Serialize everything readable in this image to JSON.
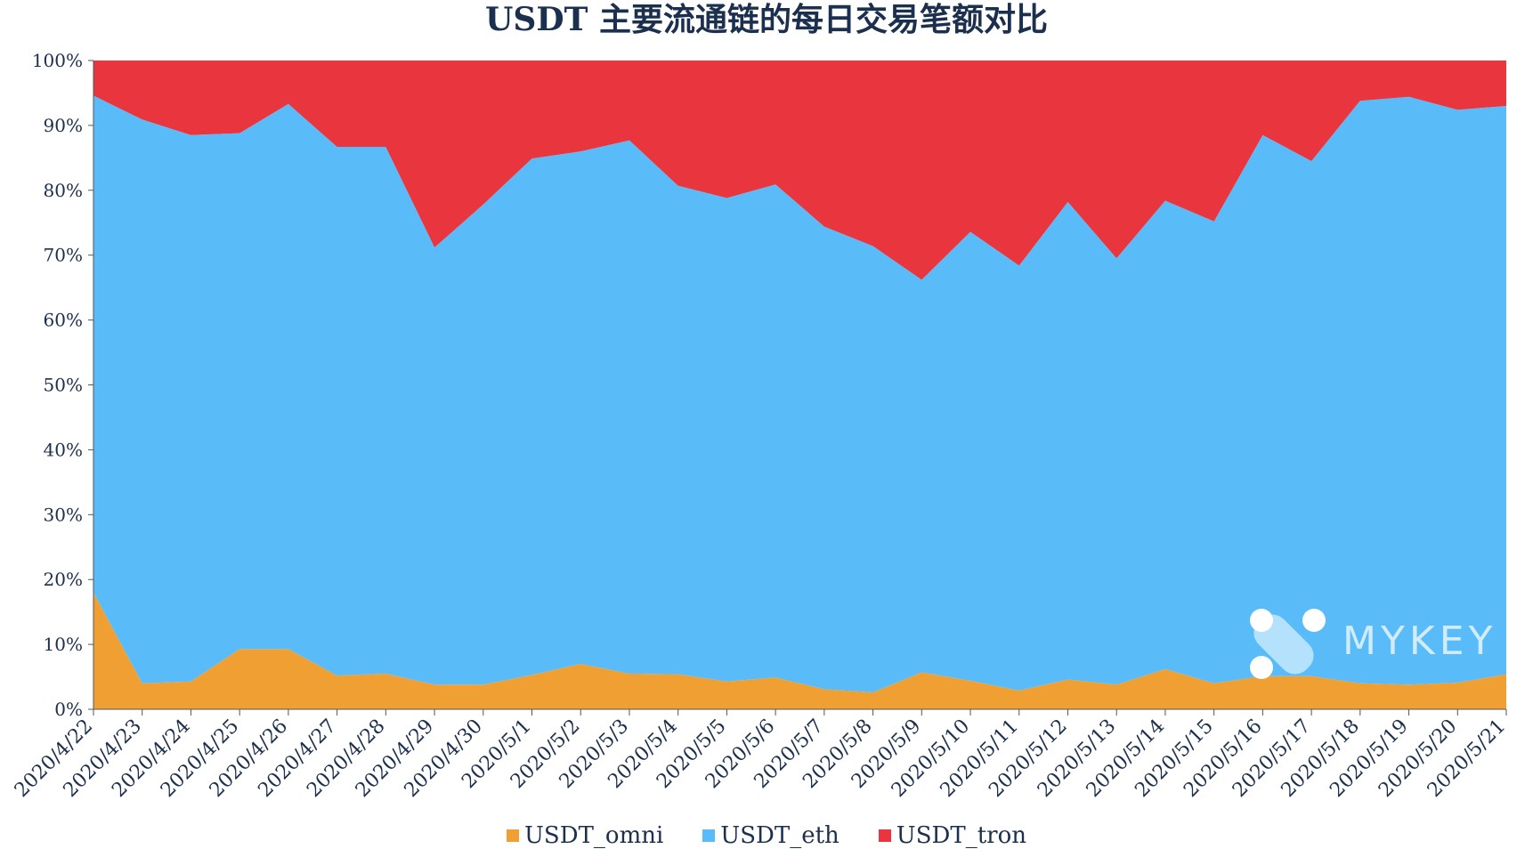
{
  "chart_data": {
    "type": "area",
    "stacked": "percent",
    "title": "USDT 主要流通链的每日交易笔额对比",
    "xlabel": "",
    "ylabel": "",
    "ylim": [
      0,
      100
    ],
    "yticks": [
      "0%",
      "10%",
      "20%",
      "30%",
      "40%",
      "50%",
      "60%",
      "70%",
      "80%",
      "90%",
      "100%"
    ],
    "categories": [
      "2020/4/22",
      "2020/4/23",
      "2020/4/24",
      "2020/4/25",
      "2020/4/26",
      "2020/4/27",
      "2020/4/28",
      "2020/4/29",
      "2020/4/30",
      "2020/5/1",
      "2020/5/2",
      "2020/5/3",
      "2020/5/4",
      "2020/5/5",
      "2020/5/6",
      "2020/5/7",
      "2020/5/8",
      "2020/5/9",
      "2020/5/10",
      "2020/5/11",
      "2020/5/12",
      "2020/5/13",
      "2020/5/14",
      "2020/5/15",
      "2020/5/16",
      "2020/5/17",
      "2020/5/18",
      "2020/5/19",
      "2020/5/20",
      "2020/5/21"
    ],
    "series": [
      {
        "name": "USDT_omni",
        "color": "#f0a033",
        "values": [
          18,
          4,
          4.3,
          9.3,
          9.3,
          5.2,
          5.5,
          3.8,
          3.8,
          5.3,
          7,
          5.5,
          5.4,
          4.3,
          4.9,
          3.1,
          2.6,
          5.7,
          4.4,
          2.9,
          4.6,
          3.8,
          6.2,
          4,
          5.1,
          5.1,
          4,
          3.8,
          4.1,
          5.4
        ]
      },
      {
        "name": "USDT_eth",
        "color": "#59bcf8",
        "values": [
          76.6,
          86.9,
          84.2,
          79.5,
          84,
          81.5,
          81.2,
          67.4,
          74,
          79.6,
          79,
          82.2,
          75.3,
          74.5,
          76,
          71.3,
          68.8,
          60.5,
          69.2,
          65.5,
          73.6,
          65.7,
          72.2,
          71.2,
          83.4,
          79.4,
          89.8,
          90.6,
          88.3,
          87.6
        ]
      },
      {
        "name": "USDT_tron",
        "color": "#e8353e",
        "values": [
          5.4,
          9.1,
          11.5,
          11.2,
          6.7,
          13.3,
          13.3,
          28.8,
          22.2,
          15.1,
          14,
          12.3,
          19.3,
          21.2,
          19.1,
          25.6,
          28.6,
          33.8,
          26.4,
          31.6,
          21.8,
          30.5,
          21.6,
          24.8,
          11.5,
          15.5,
          6.2,
          5.6,
          7.6,
          7
        ]
      }
    ],
    "legend_position": "bottom",
    "grid": false
  },
  "watermark": {
    "text": "MYKEY",
    "icon": "mykey-logo-icon"
  }
}
